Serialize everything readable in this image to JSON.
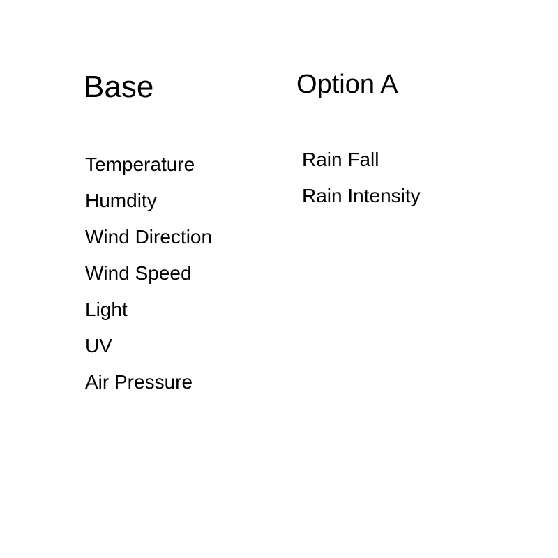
{
  "columns": {
    "base": {
      "heading": "Base",
      "items": [
        "Temperature",
        "Humdity",
        "Wind Direction",
        "Wind Speed",
        "Light",
        "UV",
        "Air Pressure"
      ]
    },
    "option_a": {
      "heading": "Option A",
      "items": [
        "Rain Fall",
        "Rain Intensity"
      ]
    }
  },
  "styling": {
    "background_color": "#ffffff",
    "text_color": "#000000",
    "heading_fontsize": 44,
    "heading_option_a_fontsize": 38,
    "item_fontsize": 28,
    "font_family": "Arial, Helvetica, sans-serif",
    "item_gap": 20,
    "heading_to_list_gap": 70
  }
}
